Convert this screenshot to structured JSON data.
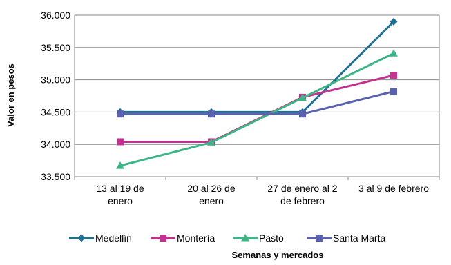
{
  "chart_data": {
    "type": "line",
    "xlabel": "Semanas y mercados",
    "ylabel": "Valor en pesos",
    "ylim": [
      33500,
      36000
    ],
    "yticks": [
      "33.500",
      "34.000",
      "34.500",
      "35.000",
      "35.500",
      "36.000"
    ],
    "ytick_values": [
      33500,
      34000,
      34500,
      35000,
      35500,
      36000
    ],
    "categories": [
      [
        "13 al 19 de",
        "enero"
      ],
      [
        "20 al 26 de",
        "enero"
      ],
      [
        "27 de enero al 2",
        "de febrero"
      ],
      [
        "3 al 9 de febrero"
      ]
    ],
    "grid": "horizontal",
    "legend_position": "bottom",
    "series": [
      {
        "name": "Medellín",
        "color": "#1f6f94",
        "marker": "diamond",
        "values": [
          34500,
          34500,
          34500,
          35900
        ]
      },
      {
        "name": "Montería",
        "color": "#c2318f",
        "marker": "square",
        "values": [
          34040,
          34040,
          34730,
          35070
        ]
      },
      {
        "name": "Pasto",
        "color": "#3db584",
        "marker": "triangle",
        "values": [
          33670,
          34030,
          34720,
          35410
        ]
      },
      {
        "name": "Santa Marta",
        "color": "#5a62b0",
        "marker": "square",
        "values": [
          34470,
          34470,
          34470,
          34820
        ]
      }
    ]
  }
}
